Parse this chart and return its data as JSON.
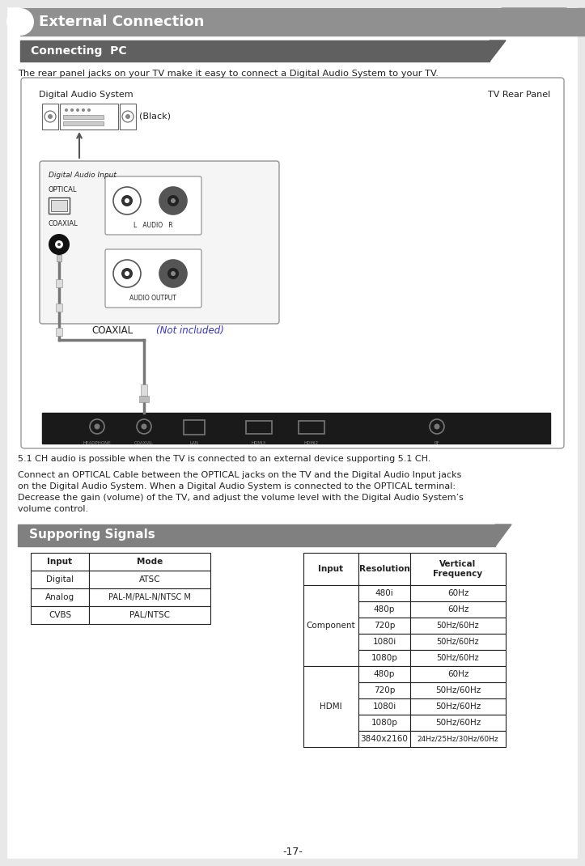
{
  "page_bg": "#e8e8e8",
  "content_bg": "#ffffff",
  "header_bg": "#909090",
  "subheader_bg": "#606060",
  "supporing_bg": "#808080",
  "header_text": "External Connection",
  "subheader_text": "Connecting  PC",
  "supporing_text": "Supporing Signals",
  "intro_text": "The rear panel jacks on your TV make it easy to connect a Digital Audio System to your TV.",
  "label_das": "Digital Audio System",
  "label_tv": "TV Rear Panel",
  "label_black": "(Black)",
  "label_coaxial": "COAXIAL",
  "label_not_included": "(Not included)",
  "text_51ch": "5.1 CH audio is possible when the TV is connected to an external device supporting 5.1 CH.",
  "text_connect_lines": [
    "Connect an OPTICAL Cable between the OPTICAL jacks on the TV and the Digital Audio Input jacks",
    "on the Digital Audio System. When a Digital Audio System is connected to the OPTICAL terminal:",
    "Decrease the gain (volume) of the TV, and adjust the volume level with the Digital Audio System’s",
    "volume control."
  ],
  "page_num": "-17-",
  "table1_headers": [
    "Input",
    "Mode"
  ],
  "table1_rows": [
    [
      "Digital",
      "ATSC"
    ],
    [
      "Analog",
      "PAL-M/PAL-N/NTSC M"
    ],
    [
      "CVBS",
      "PAL/NTSC"
    ]
  ],
  "table2_headers": [
    "Input",
    "Resolution",
    "Vertical\nFrequency"
  ],
  "table2_component_rows": [
    [
      "480i",
      "60Hz"
    ],
    [
      "480p",
      "60Hz"
    ],
    [
      "720p",
      "50Hz/60Hz"
    ],
    [
      "1080i",
      "50Hz/60Hz"
    ],
    [
      "1080p",
      "50Hz/60Hz"
    ]
  ],
  "table2_hdmi_rows": [
    [
      "480p",
      "60Hz"
    ],
    [
      "720p",
      "50Hz/60Hz"
    ],
    [
      "1080i",
      "50Hz/60Hz"
    ],
    [
      "1080p",
      "50Hz/60Hz"
    ],
    [
      "3840x2160",
      "24Hz/25Hz/30Hz/60Hz"
    ]
  ],
  "accent_blue": "#3333cc",
  "text_color": "#222222",
  "light_gray": "#cccccc",
  "panel_bg": "#1a1a1a",
  "dark_gray": "#444444"
}
